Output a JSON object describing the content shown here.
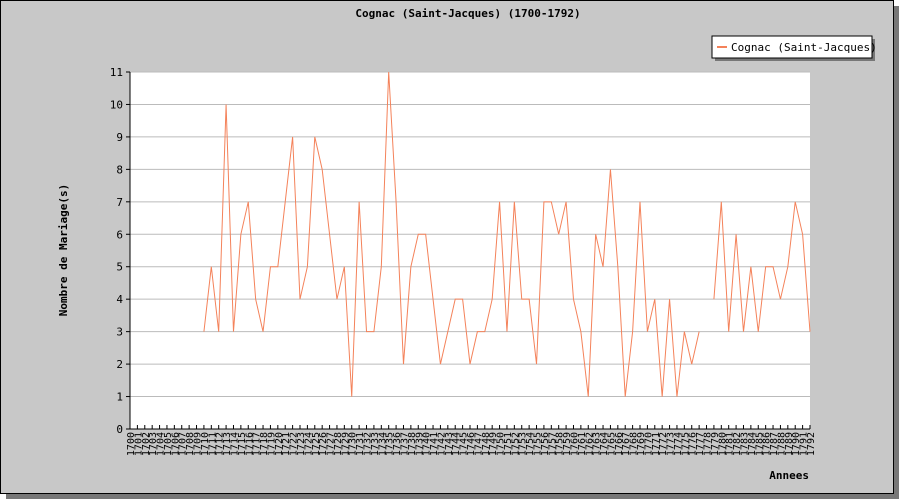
{
  "chart_data": {
    "type": "line",
    "title": "Cognac (Saint-Jacques) (1700-1792)",
    "xlabel": "Annees",
    "ylabel": "Nombre de Mariage(s)",
    "x": [
      1700,
      1701,
      1702,
      1703,
      1704,
      1705,
      1706,
      1707,
      1708,
      1709,
      1710,
      1711,
      1712,
      1713,
      1714,
      1715,
      1716,
      1717,
      1718,
      1719,
      1720,
      1721,
      1722,
      1723,
      1724,
      1725,
      1726,
      1727,
      1728,
      1729,
      1730,
      1731,
      1732,
      1733,
      1734,
      1735,
      1736,
      1737,
      1738,
      1739,
      1740,
      1741,
      1742,
      1743,
      1744,
      1745,
      1746,
      1747,
      1748,
      1749,
      1750,
      1751,
      1752,
      1753,
      1754,
      1755,
      1756,
      1757,
      1758,
      1759,
      1760,
      1761,
      1762,
      1763,
      1764,
      1765,
      1766,
      1767,
      1768,
      1769,
      1770,
      1771,
      1772,
      1773,
      1774,
      1775,
      1776,
      1777,
      1778,
      1779,
      1780,
      1781,
      1782,
      1783,
      1784,
      1785,
      1786,
      1787,
      1788,
      1789,
      1790,
      1791,
      1792
    ],
    "series": [
      {
        "name": "Cognac (Saint-Jacques)",
        "color": "#f4825a",
        "values": [
          null,
          null,
          null,
          null,
          null,
          null,
          null,
          null,
          null,
          null,
          3,
          5,
          3,
          10,
          3,
          6,
          7,
          4,
          3,
          5,
          5,
          7,
          9,
          4,
          5,
          9,
          8,
          6,
          4,
          5,
          1,
          7,
          3,
          3,
          5,
          11,
          7,
          2,
          5,
          6,
          6,
          4,
          2,
          3,
          4,
          4,
          2,
          3,
          3,
          4,
          7,
          3,
          7,
          4,
          4,
          2,
          7,
          7,
          6,
          7,
          4,
          3,
          1,
          6,
          5,
          8,
          5,
          1,
          3,
          7,
          3,
          4,
          1,
          4,
          1,
          3,
          2,
          3,
          null,
          4,
          7,
          3,
          6,
          3,
          5,
          3,
          5,
          5,
          4,
          5,
          7,
          6,
          3
        ]
      }
    ],
    "xlim": [
      1700,
      1792
    ],
    "ylim": [
      0,
      11
    ],
    "yticks": [
      0,
      1,
      2,
      3,
      4,
      5,
      6,
      7,
      8,
      9,
      10,
      11
    ],
    "grid": true,
    "legend": "top-right"
  }
}
